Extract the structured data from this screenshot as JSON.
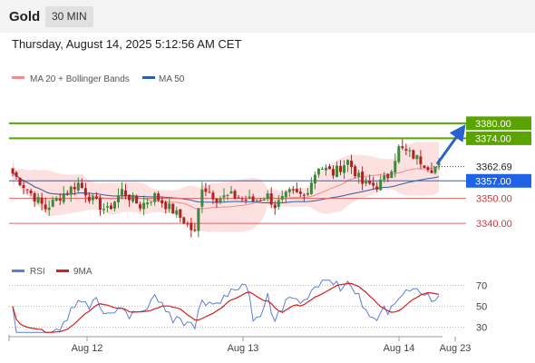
{
  "header": {
    "symbol": "Gold",
    "timeframe": "30 MIN",
    "datetime": "Thursday, August 14, 2025 5:12:56 AM CET"
  },
  "colors": {
    "up": "#3a8a3a",
    "down": "#b32020",
    "band_fill": "#fde0e0",
    "ma20": "#f08c8c",
    "ma50": "#2d5fa6",
    "resistance": "#5aa300",
    "support_blue": "#1e62e6",
    "support_red": "#e06666",
    "arrow": "#2962cc",
    "rsi": "#5b7fd6",
    "rsi_ma": "#d61f1f"
  },
  "chart_data": [
    {
      "type": "candlestick",
      "title": "",
      "legend": [
        {
          "name": "MA 20 + Bollinger Bands",
          "color": "#f08c8c"
        },
        {
          "name": "MA 50",
          "color": "#2d5fa6"
        }
      ],
      "x_tick_labels": [
        "Aug 12",
        "Aug 13",
        "Aug 14",
        "Aug 23"
      ],
      "ylim": [
        3327,
        3393
      ],
      "grid": false,
      "current_price": 3362.69,
      "levels": [
        {
          "label": "3380.00",
          "value": 3380.0,
          "kind": "resistance"
        },
        {
          "label": "3374.00",
          "value": 3374.0,
          "kind": "resistance"
        },
        {
          "label": "3357.00",
          "value": 3357.0,
          "kind": "support_blue"
        },
        {
          "label": "3350.00",
          "value": 3350.0,
          "kind": "support_red"
        },
        {
          "label": "3340.00",
          "value": 3340.0,
          "kind": "support_red"
        }
      ],
      "price_label": "3362.69",
      "forecast_arrow": {
        "from": 3363,
        "to": 3380
      }
    },
    {
      "type": "line",
      "legend": [
        {
          "name": "RSI",
          "color": "#5b7fd6"
        },
        {
          "name": "9MA",
          "color": "#d61f1f"
        }
      ],
      "ylim": [
        20,
        80
      ],
      "y_ticks": [
        70,
        50,
        30
      ],
      "y_tick_labels": [
        "70",
        "50",
        "30"
      ],
      "reference_lines": [
        70,
        50,
        30
      ]
    }
  ]
}
